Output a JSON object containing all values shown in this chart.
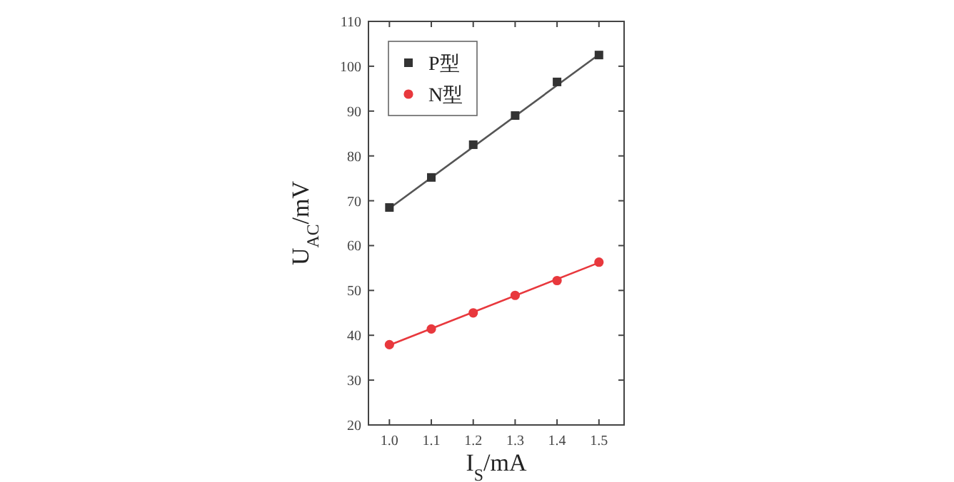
{
  "chart_data": {
    "type": "scatter",
    "xlabel": "I$_{S}$/mA",
    "ylabel": "U$_{AC}$/mV",
    "xlim": [
      0.95,
      1.56
    ],
    "ylim": [
      20,
      110
    ],
    "xticks": [
      {
        "value": 1.0,
        "label": "1.0"
      },
      1.1,
      1.2,
      1.3,
      1.4,
      1.5
    ],
    "yticks": [
      20,
      30,
      40,
      50,
      60,
      70,
      80,
      90,
      100,
      110
    ],
    "grid": false,
    "legend": "top left",
    "series": [
      {
        "name": "P型",
        "marker": "square",
        "color": "#333333",
        "x": [
          1.0,
          1.1,
          1.2,
          1.3,
          1.4,
          1.5
        ],
        "values": [
          68.5,
          75.2,
          82.5,
          89.0,
          96.5,
          102.5
        ]
      },
      {
        "name": "N型",
        "marker": "circle",
        "color": "#e8383d",
        "x": [
          1.0,
          1.1,
          1.2,
          1.3,
          1.4,
          1.5
        ],
        "values": [
          37.9,
          41.4,
          45.0,
          48.9,
          52.2,
          56.3
        ]
      },
      {
        "type": "line",
        "marker": "none",
        "color": "#555555",
        "x": [
          1.0,
          1.5
        ],
        "values": [
          68.3,
          102.6
        ]
      },
      {
        "type": "line",
        "marker": "none",
        "color": "#e8383d",
        "x": [
          1.0,
          1.5
        ],
        "values": [
          37.8,
          56.2
        ]
      }
    ]
  }
}
